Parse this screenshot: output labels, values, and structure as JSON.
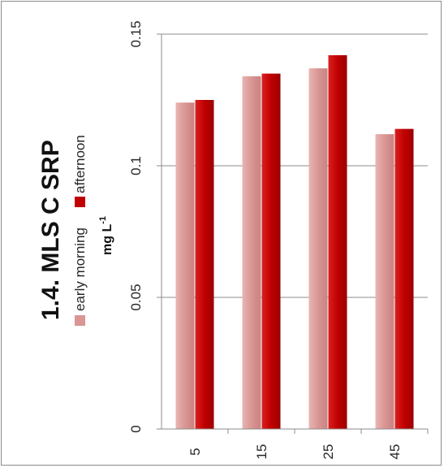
{
  "chart_data": {
    "type": "bar",
    "orientation": "rotated-90",
    "title": "1.4. MLS C SRP",
    "ylabel": "mg L",
    "ylabel_superscript": "-1",
    "categories": [
      "5",
      "15",
      "25",
      "45"
    ],
    "series": [
      {
        "name": "early morning",
        "color": "#d99694",
        "values": [
          0.124,
          0.134,
          0.137,
          0.112
        ]
      },
      {
        "name": "afternoon",
        "color": "#c00000",
        "values": [
          0.125,
          0.135,
          0.142,
          0.114
        ]
      }
    ],
    "ylim": [
      0,
      0.15
    ],
    "yticks": [
      "0",
      "0.05",
      "0.1",
      "0.15"
    ],
    "grid": true,
    "legend": "left"
  }
}
